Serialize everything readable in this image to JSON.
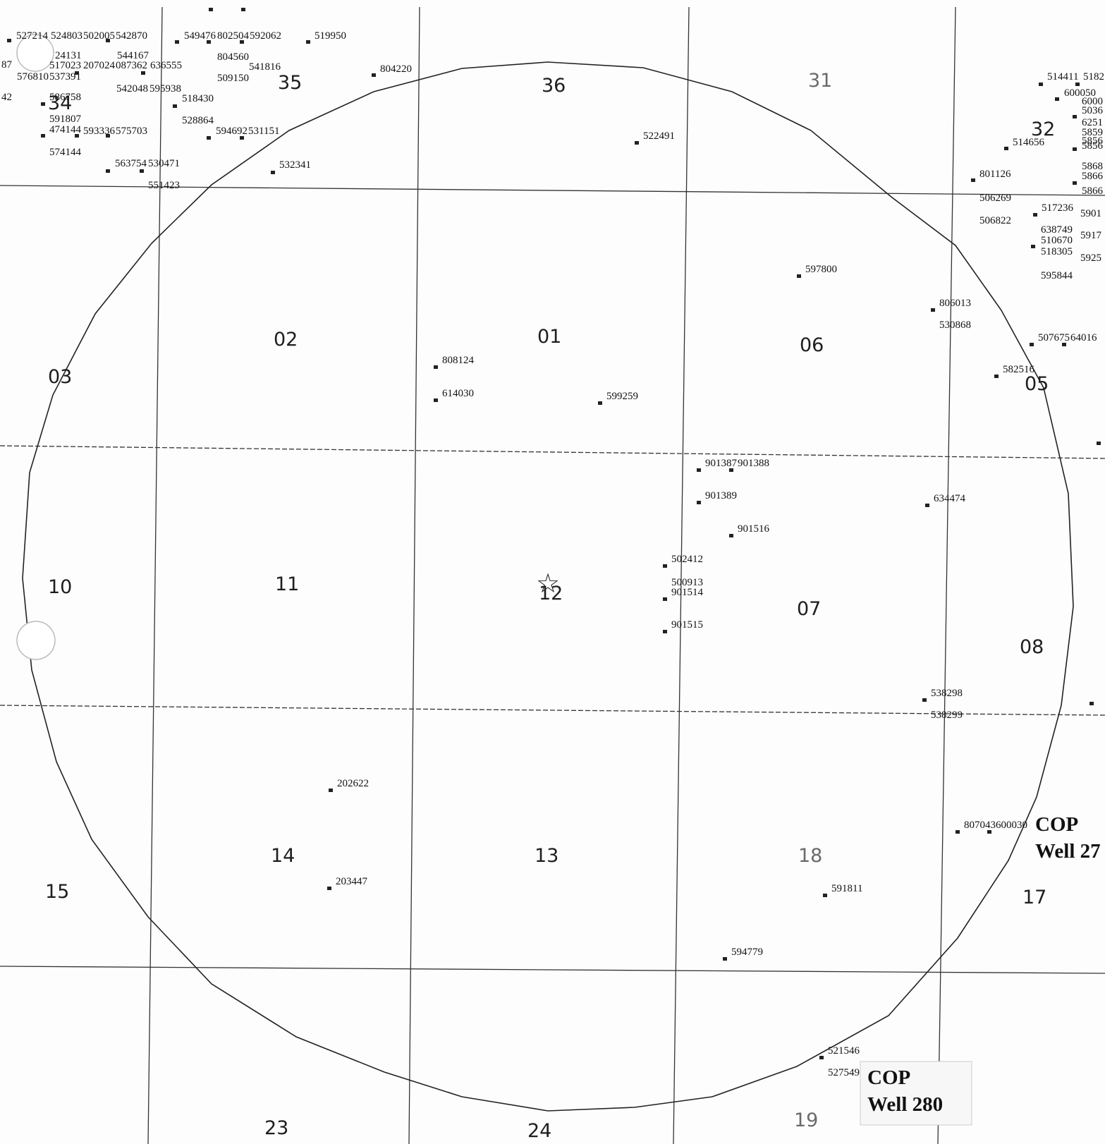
{
  "sections": [
    {
      "label": "36"
    },
    {
      "label": "31"
    },
    {
      "label": "35"
    },
    {
      "label": "32"
    },
    {
      "label": "34"
    },
    {
      "label": "02"
    },
    {
      "label": "01"
    },
    {
      "label": "06"
    },
    {
      "label": "03"
    },
    {
      "label": "05"
    },
    {
      "label": "10"
    },
    {
      "label": "11"
    },
    {
      "label": "12"
    },
    {
      "label": "07"
    },
    {
      "label": "08"
    },
    {
      "label": "14"
    },
    {
      "label": "13"
    },
    {
      "label": "18"
    },
    {
      "label": "15"
    },
    {
      "label": "17"
    },
    {
      "label": "23"
    },
    {
      "label": "24"
    },
    {
      "label": "19"
    }
  ],
  "wells": [
    {
      "id": "527214"
    },
    {
      "id": "524803"
    },
    {
      "id": "502005"
    },
    {
      "id": "542870"
    },
    {
      "id": "549476"
    },
    {
      "id": "802504"
    },
    {
      "id": "592062"
    },
    {
      "id": "519950"
    },
    {
      "id": "24131"
    },
    {
      "id": "544167"
    },
    {
      "id": "804560"
    },
    {
      "id": "87"
    },
    {
      "id": "517023"
    },
    {
      "id": "207024"
    },
    {
      "id": "087362"
    },
    {
      "id": "636555"
    },
    {
      "id": "541816"
    },
    {
      "id": "576810"
    },
    {
      "id": "537391"
    },
    {
      "id": "509150"
    },
    {
      "id": "804220"
    },
    {
      "id": "542048"
    },
    {
      "id": "595938"
    },
    {
      "id": "518430"
    },
    {
      "id": "42"
    },
    {
      "id": "586758"
    },
    {
      "id": "591807"
    },
    {
      "id": "474144"
    },
    {
      "id": "593336"
    },
    {
      "id": "575703"
    },
    {
      "id": "528864"
    },
    {
      "id": "594692"
    },
    {
      "id": "531151"
    },
    {
      "id": "574144"
    },
    {
      "id": "563754"
    },
    {
      "id": "530471"
    },
    {
      "id": "532341"
    },
    {
      "id": "551423"
    },
    {
      "id": "522491"
    },
    {
      "id": "514411"
    },
    {
      "id": "5182"
    },
    {
      "id": "600050"
    },
    {
      "id": "6000"
    },
    {
      "id": "5036"
    },
    {
      "id": "6251"
    },
    {
      "id": "5859"
    },
    {
      "id": "5856"
    },
    {
      "id": "5856"
    },
    {
      "id": "514656"
    },
    {
      "id": "5868"
    },
    {
      "id": "5866"
    },
    {
      "id": "5866"
    },
    {
      "id": "801126"
    },
    {
      "id": "506269"
    },
    {
      "id": "517236"
    },
    {
      "id": "5901"
    },
    {
      "id": "506822"
    },
    {
      "id": "638749"
    },
    {
      "id": "510670"
    },
    {
      "id": "5917"
    },
    {
      "id": "518305"
    },
    {
      "id": "5925"
    },
    {
      "id": "595844"
    },
    {
      "id": "597800"
    },
    {
      "id": "806013"
    },
    {
      "id": "530868"
    },
    {
      "id": "507675"
    },
    {
      "id": "64016"
    },
    {
      "id": "582516"
    },
    {
      "id": "808124"
    },
    {
      "id": "614030"
    },
    {
      "id": "599259"
    },
    {
      "id": "901387"
    },
    {
      "id": "901388"
    },
    {
      "id": "901389"
    },
    {
      "id": "634474"
    },
    {
      "id": "901516"
    },
    {
      "id": "502412"
    },
    {
      "id": "500913"
    },
    {
      "id": "901514"
    },
    {
      "id": "901515"
    },
    {
      "id": "538298"
    },
    {
      "id": "538299"
    },
    {
      "id": "202622"
    },
    {
      "id": "203447"
    },
    {
      "id": "807043"
    },
    {
      "id": "600030"
    },
    {
      "id": "591811"
    },
    {
      "id": "594779"
    },
    {
      "id": "521546"
    },
    {
      "id": "527549"
    }
  ],
  "cop_labels": [
    {
      "line1": "COP",
      "line2": "Well 27"
    },
    {
      "line1": "COP",
      "line2": "Well 280"
    }
  ],
  "center_symbol": "☆"
}
